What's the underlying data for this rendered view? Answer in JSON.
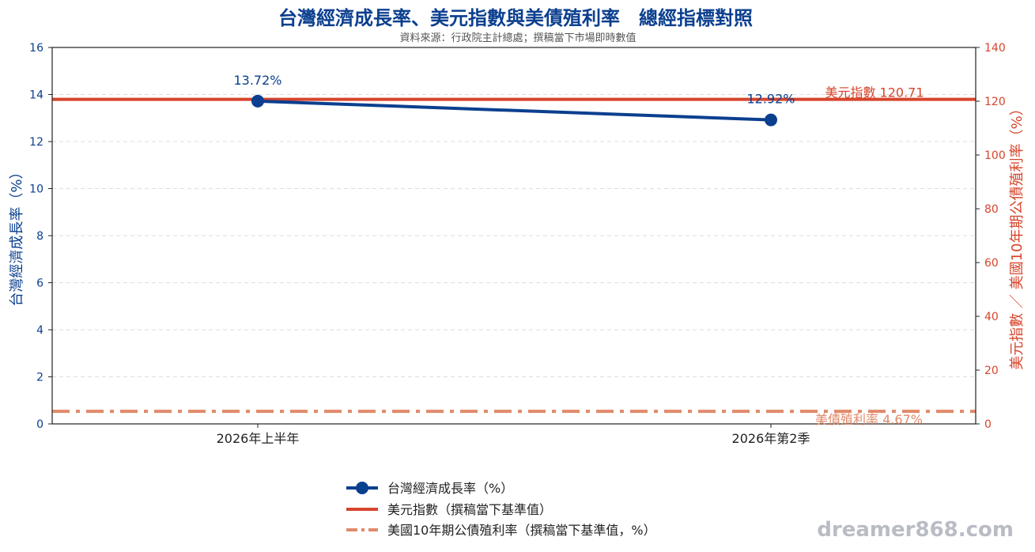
{
  "chart_data": {
    "type": "line",
    "title": "台灣經濟成長率、美元指數與美債殖利率　總經指標對照",
    "subtitle": "資料來源：行政院主計總處；撰稿當下市場即時數值",
    "categories": [
      "2026年上半年",
      "2026年第2季"
    ],
    "y_left": {
      "label": "台灣經濟成長率（%）",
      "min": 0,
      "max": 16,
      "ticks": [
        0,
        2,
        4,
        6,
        8,
        10,
        12,
        14,
        16
      ]
    },
    "y_right": {
      "label": "美元指數 ／ 美國10年期公債殖利率（%）",
      "min": 0,
      "max": 140,
      "ticks": [
        0,
        20,
        40,
        60,
        80,
        100,
        120,
        140
      ]
    },
    "grid": true,
    "legend_position": "bottom",
    "series": [
      {
        "name": "台灣經濟成長率（%）",
        "axis": "left",
        "values": [
          13.72,
          12.92
        ],
        "labels": [
          "13.72%",
          "12.92%"
        ],
        "color": "#0b3f8f"
      },
      {
        "name": "美元指數（撰稿當下基準值）",
        "axis": "right",
        "baseline": 120.71,
        "annotation": "美元指數 120.71",
        "color": "#d6452c"
      },
      {
        "name": "美國10年期公債殖利率（撰稿當下基準值，%）",
        "axis": "right",
        "baseline": 4.67,
        "annotation": "美債殖利率 4.67%",
        "color": "#e08a6a"
      }
    ]
  },
  "watermark": "dreamer868.com"
}
